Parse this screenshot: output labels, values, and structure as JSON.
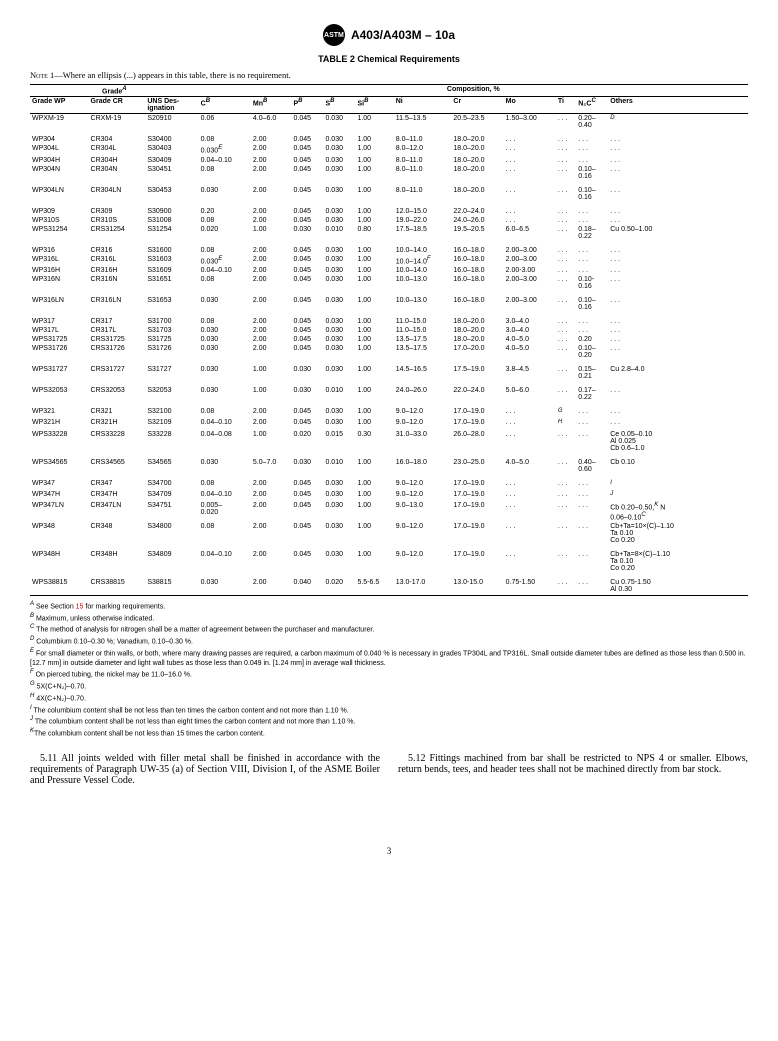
{
  "header": {
    "logo_text": "ASTM",
    "designation": "A403/A403M – 10a"
  },
  "table": {
    "title": "TABLE 2   Chemical Requirements",
    "note": "1—Where an ellipsis (...) appears in this table, there is no requirement.",
    "note_label": "Note",
    "group_labels": {
      "grade": "Grade",
      "comp": "Composition, %"
    },
    "headers": {
      "wp": "Grade WP",
      "cr": "Grade CR",
      "uns": "UNS Des-\nignation",
      "c": "C",
      "mn": "Mn",
      "p": "P",
      "s": "S",
      "si": "Si",
      "ni": "Ni",
      "crcol": "Cr",
      "mo": "Mo",
      "ti": "Ti",
      "n2c": "N₂C",
      "others": "Others"
    },
    "rows": [
      {
        "wp": "WPXM-19",
        "cr": "CRXM-19",
        "uns": "S20910",
        "c": "0.06",
        "mn": "4.0–6.0",
        "p": "0.045",
        "s": "0.030",
        "si": "1.00",
        "ni": "11.5–13.5",
        "crc": "20.5–23.5",
        "mo": "1.50–3.00",
        "ti": ". . .",
        "n": "0.20–\n0.40",
        "oth": "D",
        "oth_sup": true,
        "gap": false
      },
      {
        "wp": "WP304",
        "cr": "CR304",
        "uns": "S30400",
        "c": "0.08",
        "mn": "2.00",
        "p": "0.045",
        "s": "0.030",
        "si": "1.00",
        "ni": "8.0–11.0",
        "crc": "18.0–20.0",
        "mo": ". . .",
        "ti": ". . .",
        "n": ". . .",
        "oth": ". . .",
        "gap": true
      },
      {
        "wp": "WP304L",
        "cr": "CR304L",
        "uns": "S30403",
        "c": "0.030E",
        "c_sup": true,
        "mn": "2.00",
        "p": "0.045",
        "s": "0.030",
        "si": "1.00",
        "ni": "8.0–12.0",
        "crc": "18.0–20.0",
        "mo": ". . .",
        "ti": ". . .",
        "n": ". . .",
        "oth": ". . ."
      },
      {
        "wp": "WP304H",
        "cr": "CR304H",
        "uns": "S30409",
        "c": "0.04–0.10",
        "mn": "2.00",
        "p": "0.045",
        "s": "0.030",
        "si": "1.00",
        "ni": "8.0–11.0",
        "crc": "18.0–20.0",
        "mo": ". . .",
        "ti": ". . .",
        "n": ". . .",
        "oth": ". . ."
      },
      {
        "wp": "WP304N",
        "cr": "CR304N",
        "uns": "S30451",
        "c": "0.08",
        "mn": "2.00",
        "p": "0.045",
        "s": "0.030",
        "si": "1.00",
        "ni": "8.0–11.0",
        "crc": "18.0–20.0",
        "mo": ". . .",
        "ti": ". . .",
        "n": "0.10–\n0.16",
        "oth": ". . ."
      },
      {
        "wp": "WP304LN",
        "cr": "CR304LN",
        "uns": "S30453",
        "c": "0.030",
        "mn": "2.00",
        "p": "0.045",
        "s": "0.030",
        "si": "1.00",
        "ni": "8.0–11.0",
        "crc": "18.0–20.0",
        "mo": ". . .",
        "ti": ". . .",
        "n": "0.10–\n0.16",
        "oth": ". . .",
        "gap": true
      },
      {
        "wp": "WP309",
        "cr": "CR309",
        "uns": "S30900",
        "c": "0.20",
        "mn": "2.00",
        "p": "0.045",
        "s": "0.030",
        "si": "1.00",
        "ni": "12.0–15.0",
        "crc": "22.0–24.0",
        "mo": ". . .",
        "ti": ". . .",
        "n": ". . .",
        "oth": ". . .",
        "gap": true
      },
      {
        "wp": "WP310S",
        "cr": "CR310S",
        "uns": "S31008",
        "c": "0.08",
        "mn": "2.00",
        "p": "0.045",
        "s": "0.030",
        "si": "1.00",
        "ni": "19.0–22.0",
        "crc": "24.0–26.0",
        "mo": ". . .",
        "ti": ". . .",
        "n": ". . .",
        "oth": ". . ."
      },
      {
        "wp": "WPS31254",
        "cr": "CRS31254",
        "uns": "S31254",
        "c": "0.020",
        "mn": "1.00",
        "p": "0.030",
        "s": "0.010",
        "si": "0.80",
        "ni": "17.5–18.5",
        "crc": "19.5–20.5",
        "mo": "6.0–6.5",
        "ti": ". . .",
        "n": "0.18–\n0.22",
        "oth": "Cu 0.50–1.00"
      },
      {
        "wp": "WP316",
        "cr": "CR316",
        "uns": "S31600",
        "c": "0.08",
        "mn": "2.00",
        "p": "0.045",
        "s": "0.030",
        "si": "1.00",
        "ni": "10.0–14.0",
        "crc": "16.0–18.0",
        "mo": "2.00–3.00",
        "ti": ". . .",
        "n": ". . .",
        "oth": ". . .",
        "gap": true
      },
      {
        "wp": "WP316L",
        "cr": "CR316L",
        "uns": "S31603",
        "c": "0.030E",
        "c_sup": true,
        "mn": "2.00",
        "p": "0.045",
        "s": "0.030",
        "si": "1.00",
        "ni": "10.0–14.0F",
        "ni_sup": true,
        "crc": "16.0–18.0",
        "mo": "2.00–3.00",
        "ti": ". . .",
        "n": ". . .",
        "oth": ". . ."
      },
      {
        "wp": "WP316H",
        "cr": "CR316H",
        "uns": "S31609",
        "c": "0.04–0.10",
        "mn": "2.00",
        "p": "0.045",
        "s": "0.030",
        "si": "1.00",
        "ni": "10.0–14.0",
        "crc": "16.0–18.0",
        "mo": "2.00-3.00",
        "ti": ". . .",
        "n": ". . .",
        "oth": ". . ."
      },
      {
        "wp": "WP316N",
        "cr": "CR316N",
        "uns": "S31651",
        "c": "0.08",
        "mn": "2.00",
        "p": "0.045",
        "s": "0.030",
        "si": "1.00",
        "ni": "10.0–13.0",
        "crc": "16.0–18.0",
        "mo": "2.00–3.00",
        "ti": ". . .",
        "n": "0.10-\n0.16",
        "oth": ". . ."
      },
      {
        "wp": "WP316LN",
        "cr": "CR316LN",
        "uns": "S31653",
        "c": "0.030",
        "mn": "2.00",
        "p": "0.045",
        "s": "0.030",
        "si": "1.00",
        "ni": "10.0–13.0",
        "crc": "16.0–18.0",
        "mo": "2.00–3.00",
        "ti": ". . .",
        "n": "0.10–\n0.16",
        "oth": ". . .",
        "gap": true
      },
      {
        "wp": "WP317",
        "cr": "CR317",
        "uns": "S31700",
        "c": "0.08",
        "mn": "2.00",
        "p": "0.045",
        "s": "0.030",
        "si": "1.00",
        "ni": "11.0–15.0",
        "crc": "18.0–20.0",
        "mo": "3.0–4.0",
        "ti": ". . .",
        "n": ". . .",
        "oth": ". . .",
        "gap": true
      },
      {
        "wp": "WP317L",
        "cr": "CR317L",
        "uns": "S31703",
        "c": "0.030",
        "mn": "2.00",
        "p": "0.045",
        "s": "0.030",
        "si": "1.00",
        "ni": "11.0–15.0",
        "crc": "18.0–20.0",
        "mo": "3.0–4.0",
        "ti": ". . .",
        "n": ". . .",
        "oth": ". . ."
      },
      {
        "wp": "WPS31725",
        "cr": "CRS31725",
        "uns": "S31725",
        "c": "0.030",
        "mn": "2.00",
        "p": "0.045",
        "s": "0.030",
        "si": "1.00",
        "ni": "13.5–17.5",
        "crc": "18.0–20.0",
        "mo": "4.0–5.0",
        "ti": ". . .",
        "n": "0.20",
        "oth": ". . ."
      },
      {
        "wp": "WPS31726",
        "cr": "CRS31726",
        "uns": "S31726",
        "c": "0.030",
        "mn": "2.00",
        "p": "0.045",
        "s": "0.030",
        "si": "1.00",
        "ni": "13.5–17.5",
        "crc": "17.0–20.0",
        "mo": "4.0–5.0",
        "ti": ". . .",
        "n": "0.10–\n0.20",
        "oth": ". . ."
      },
      {
        "wp": "WPS31727",
        "cr": "CRS31727",
        "uns": "S31727",
        "c": "0.030",
        "mn": "1.00",
        "p": "0.030",
        "s": "0.030",
        "si": "1.00",
        "ni": "14.5–16.5",
        "crc": "17.5–19.0",
        "mo": "3.8–4.5",
        "ti": ". . .",
        "n": "0.15–\n0.21",
        "oth": "Cu 2.8–4.0",
        "gap": true
      },
      {
        "wp": "WPS32053",
        "cr": "CRS32053",
        "uns": "S32053",
        "c": "0.030",
        "mn": "1.00",
        "p": "0.030",
        "s": "0.010",
        "si": "1.00",
        "ni": "24.0–26.0",
        "crc": "22.0–24.0",
        "mo": "5.0–6.0",
        "ti": ". . .",
        "n": "0.17–\n0.22",
        "oth": ". . .",
        "gap": true
      },
      {
        "wp": "WP321",
        "cr": "CR321",
        "uns": "S32100",
        "c": "0.08",
        "mn": "2.00",
        "p": "0.045",
        "s": "0.030",
        "si": "1.00",
        "ni": "9.0–12.0",
        "crc": "17.0–19.0",
        "mo": ". . .",
        "ti": "G",
        "ti_sup": true,
        "n": ". . .",
        "oth": ". . .",
        "gap": true
      },
      {
        "wp": "WP321H",
        "cr": "CR321H",
        "uns": "S32109",
        "c": "0.04–0.10",
        "mn": "2.00",
        "p": "0.045",
        "s": "0.030",
        "si": "1.00",
        "ni": "9.0–12.0",
        "crc": "17.0–19.0",
        "mo": ". . .",
        "ti": "H",
        "ti_sup": true,
        "n": ". . .",
        "oth": ". . ."
      },
      {
        "wp": "WPS33228",
        "cr": "CRS33228",
        "uns": "S33228",
        "c": "0.04–0.08",
        "mn": "1.00",
        "p": "0.020",
        "s": "0.015",
        "si": "0.30",
        "ni": "31.0–33.0",
        "crc": "26.0–28.0",
        "mo": ". . .",
        "ti": ". . .",
        "n": ". . .",
        "oth": "Ce 0.05–0.10\nAl 0.025\nCb 0.6–1.0"
      },
      {
        "wp": "WPS34565",
        "cr": "CRS34565",
        "uns": "S34565",
        "c": "0.030",
        "mn": "5.0–7.0",
        "p": "0.030",
        "s": "0.010",
        "si": "1.00",
        "ni": "16.0–18.0",
        "crc": "23.0–25.0",
        "mo": "4.0–5.0",
        "ti": ". . .",
        "n": "0.40–\n0.60",
        "oth": "Cb 0.10",
        "gap": true
      },
      {
        "wp": "WP347",
        "cr": "CR347",
        "uns": "S34700",
        "c": "0.08",
        "mn": "2.00",
        "p": "0.045",
        "s": "0.030",
        "si": "1.00",
        "ni": "9.0–12.0",
        "crc": "17.0–19.0",
        "mo": ". . .",
        "ti": ". . .",
        "n": ". . .",
        "oth": "I",
        "oth_sup": true,
        "gap": true
      },
      {
        "wp": "WP347H",
        "cr": "CR347H",
        "uns": "S34709",
        "c": "0.04–0.10",
        "mn": "2.00",
        "p": "0.045",
        "s": "0.030",
        "si": "1.00",
        "ni": "9.0–12.0",
        "crc": "17.0–19.0",
        "mo": ". . .",
        "ti": ". . .",
        "n": ". . .",
        "oth": "J",
        "oth_sup": true
      },
      {
        "wp": "WP347LN",
        "cr": "CR347LN",
        "uns": "S34751",
        "c": "0.005–\n0.020",
        "mn": "2.00",
        "p": "0.045",
        "s": "0.030",
        "si": "1.00",
        "ni": "9.0–13.0",
        "crc": "17.0–19.0",
        "mo": ". . .",
        "ti": ". . .",
        "n": ". . .",
        "oth": "Cb 0.20–0.50,K N\n0.06–0.10C",
        "oth_supmix": true
      },
      {
        "wp": "WP348",
        "cr": "CR348",
        "uns": "S34800",
        "c": "0.08",
        "mn": "2.00",
        "p": "0.045",
        "s": "0.030",
        "si": "1.00",
        "ni": "9.0–12.0",
        "crc": "17.0–19.0",
        "mo": ". . .",
        "ti": ". . .",
        "n": ". . .",
        "oth": "Cb+Ta=10×(C)–1.10\nTa 0.10\nCo 0.20"
      },
      {
        "wp": "WP348H",
        "cr": "CR348H",
        "uns": "S34809",
        "c": "0.04–0.10",
        "mn": "2.00",
        "p": "0.045",
        "s": "0.030",
        "si": "1.00",
        "ni": "9.0–12.0",
        "crc": "17.0–19.0",
        "mo": ". . .",
        "ti": ". . .",
        "n": ". . .",
        "oth": "Cb+Ta=8×(C)–1.10\nTa 0.10\nCo 0.20",
        "gap": true
      },
      {
        "wp": "WPS38815",
        "cr": "CRS38815",
        "uns": "S38815",
        "c": "0.030",
        "mn": "2.00",
        "p": "0.040",
        "s": "0.020",
        "si": "5.5-6.5",
        "ni": "13.0-17.0",
        "crc": "13.0-15.0",
        "mo": "0.75-1.50",
        "ti": ". . .",
        "n": ". . .",
        "oth": "Cu 0.75-1.50\nAl 0.30",
        "gap": true
      }
    ],
    "footnotes": [
      {
        "sup": "A",
        "text": " See Section ",
        "link": "15",
        "after": " for marking requirements."
      },
      {
        "sup": "B",
        "text": " Maximum, unless otherwise indicated."
      },
      {
        "sup": "C",
        "text": " The method of analysis for nitrogen shall be a matter of agreement between the purchaser and manufacturer."
      },
      {
        "sup": "D",
        "text": " Columbium 0.10–0.30 %; Vanadium, 0.10–0.30 %."
      },
      {
        "sup": "E",
        "text": " For small diameter or thin walls, or both, where many drawing passes are required, a carbon maximum of 0.040 % is necessary in grades TP304L and TP316L. Small outside diameter tubes are defined as those less than 0.500 in. [12.7 mm] in outside diameter and light wall tubes as those less than 0.049 in. [1.24 mm] in average wall thickness."
      },
      {
        "sup": "F",
        "text": " On pierced tubing, the nickel may be 11.0–16.0 %."
      },
      {
        "sup": "G",
        "text": " 5X(C+N₂)–0.70."
      },
      {
        "sup": "H",
        "text": " 4X(C+N₂)–0.70."
      },
      {
        "sup": "I",
        "text": " The columbium content shall be not less than ten times the carbon content and not more than 1.10 %."
      },
      {
        "sup": "J",
        "text": " The columbium content shall be not less than eight times the carbon content and not more than 1.10 %."
      },
      {
        "sup": "K",
        "text": "The columbium content shall be not less than 15 times the carbon content."
      }
    ]
  },
  "body": {
    "p1": "5.11  All joints welded with filler metal shall be finished in accordance with the requirements of Paragraph UW-35 (a) of Section VIII, Division I, of the ASME Boiler and Pressure Vessel Code.",
    "p2": "5.12  Fittings machined from bar shall be restricted to NPS 4 or smaller. Elbows, return bends, tees, and header tees shall not be machined directly from bar stock."
  },
  "page_number": "3"
}
